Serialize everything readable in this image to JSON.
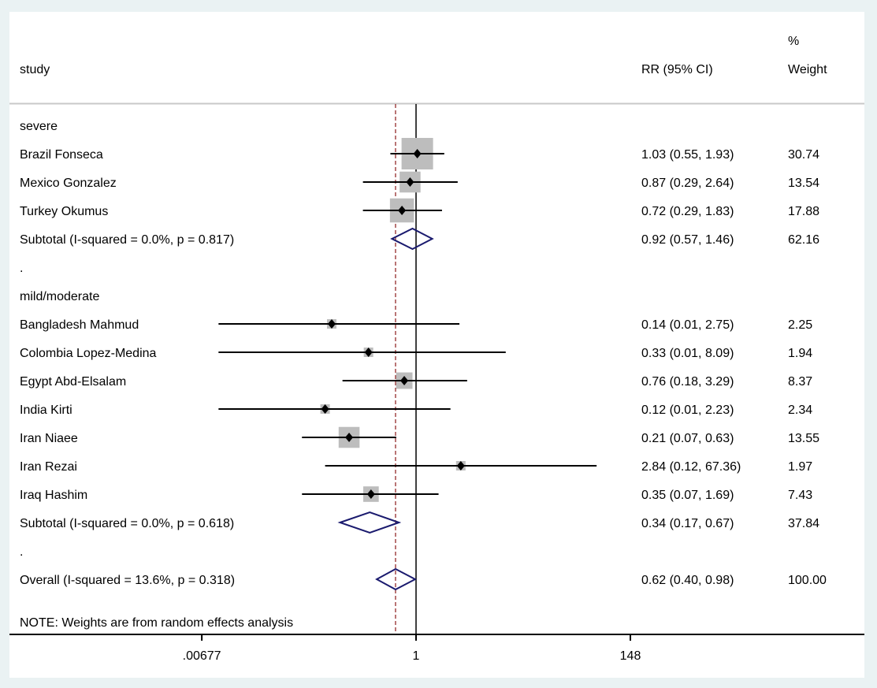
{
  "chart_data": {
    "type": "forest",
    "scale": "log",
    "header": {
      "study": "study",
      "effect": "RR (95% CI)",
      "weight_top": "%",
      "weight": "Weight"
    },
    "null_value": 1,
    "overall_line_value": 0.62,
    "x_ticks": [
      {
        "value": 0.00677,
        "label": ".00677"
      },
      {
        "value": 1,
        "label": "1"
      },
      {
        "value": 148,
        "label": "148"
      }
    ],
    "rows": [
      {
        "kind": "group",
        "label": "severe"
      },
      {
        "kind": "study",
        "label": "Brazil Fonseca",
        "rr": 1.03,
        "lo": 0.55,
        "hi": 1.93,
        "ci_text": "1.03 (0.55, 1.93)",
        "weight": 30.74,
        "weight_text": "30.74"
      },
      {
        "kind": "study",
        "label": "Mexico Gonzalez",
        "rr": 0.87,
        "lo": 0.29,
        "hi": 2.64,
        "ci_text": "0.87 (0.29, 2.64)",
        "weight": 13.54,
        "weight_text": "13.54"
      },
      {
        "kind": "study",
        "label": "Turkey Okumus",
        "rr": 0.72,
        "lo": 0.29,
        "hi": 1.83,
        "ci_text": "0.72 (0.29, 1.83)",
        "weight": 17.88,
        "weight_text": "17.88"
      },
      {
        "kind": "subtotal",
        "label": "Subtotal  (I-squared = 0.0%, p = 0.817)",
        "rr": 0.92,
        "lo": 0.57,
        "hi": 1.46,
        "ci_text": "0.92 (0.57, 1.46)",
        "weight_text": "62.16"
      },
      {
        "kind": "spacer",
        "label": "."
      },
      {
        "kind": "group",
        "label": "mild/moderate"
      },
      {
        "kind": "study",
        "label": "Bangladesh Mahmud",
        "rr": 0.14,
        "lo": 0.01,
        "hi": 2.75,
        "ci_text": "0.14 (0.01, 2.75)",
        "weight": 2.25,
        "weight_text": "2.25"
      },
      {
        "kind": "study",
        "label": "Colombia Lopez-Medina",
        "rr": 0.33,
        "lo": 0.01,
        "hi": 8.09,
        "ci_text": "0.33 (0.01, 8.09)",
        "weight": 1.94,
        "weight_text": "1.94"
      },
      {
        "kind": "study",
        "label": "Egypt Abd-Elsalam",
        "rr": 0.76,
        "lo": 0.18,
        "hi": 3.29,
        "ci_text": "0.76 (0.18, 3.29)",
        "weight": 8.37,
        "weight_text": "8.37"
      },
      {
        "kind": "study",
        "label": "India Kirti",
        "rr": 0.12,
        "lo": 0.01,
        "hi": 2.23,
        "ci_text": "0.12 (0.01, 2.23)",
        "weight": 2.34,
        "weight_text": "2.34"
      },
      {
        "kind": "study",
        "label": "Iran Niaee",
        "rr": 0.21,
        "lo": 0.07,
        "hi": 0.63,
        "ci_text": "0.21 (0.07, 0.63)",
        "weight": 13.55,
        "weight_text": "13.55"
      },
      {
        "kind": "study",
        "label": "Iran Rezai",
        "rr": 2.84,
        "lo": 0.12,
        "hi": 67.36,
        "ci_text": "2.84 (0.12, 67.36)",
        "weight": 1.97,
        "weight_text": "1.97"
      },
      {
        "kind": "study",
        "label": "Iraq Hashim",
        "rr": 0.35,
        "lo": 0.07,
        "hi": 1.69,
        "ci_text": "0.35 (0.07, 1.69)",
        "weight": 7.43,
        "weight_text": "7.43"
      },
      {
        "kind": "subtotal",
        "label": "Subtotal  (I-squared = 0.0%, p = 0.618)",
        "rr": 0.34,
        "lo": 0.17,
        "hi": 0.67,
        "ci_text": "0.34 (0.17, 0.67)",
        "weight_text": "37.84"
      },
      {
        "kind": "spacer",
        "label": "."
      },
      {
        "kind": "overall",
        "label": "Overall  (I-squared = 13.6%, p = 0.318)",
        "rr": 0.62,
        "lo": 0.4,
        "hi": 0.98,
        "ci_text": "0.62 (0.40, 0.98)",
        "weight_text": "100.00"
      }
    ],
    "note": "NOTE: Weights are from random effects analysis"
  },
  "colors": {
    "background": "#eaf2f3",
    "panel": "#ffffff",
    "diamond": "#1a1a6e",
    "weight_box": "#bdbdbd",
    "overall_line": "#8b1a1a",
    "header_rule": "#c8c8c8"
  }
}
